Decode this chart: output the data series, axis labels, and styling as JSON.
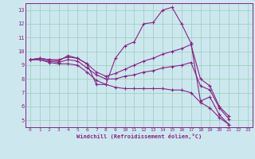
{
  "xlabel": "Windchill (Refroidissement éolien,°C)",
  "bg_color": "#cce8ee",
  "line_color": "#882288",
  "grid_color": "#99ccbb",
  "xlim": [
    -0.5,
    23.5
  ],
  "ylim": [
    4.5,
    13.5
  ],
  "yticks": [
    5,
    6,
    7,
    8,
    9,
    10,
    11,
    12,
    13
  ],
  "xticks": [
    0,
    1,
    2,
    3,
    4,
    5,
    6,
    7,
    8,
    9,
    10,
    11,
    12,
    13,
    14,
    15,
    16,
    17,
    18,
    19,
    20,
    21,
    22,
    23
  ],
  "series": [
    [
      9.4,
      9.5,
      9.4,
      9.3,
      9.7,
      9.5,
      9.1,
      7.6,
      7.6,
      9.5,
      10.4,
      10.7,
      12.0,
      12.1,
      13.0,
      13.2,
      12.0,
      10.6,
      6.4,
      6.7,
      5.4,
      4.7
    ],
    [
      9.4,
      9.5,
      9.4,
      9.4,
      9.6,
      9.5,
      9.1,
      8.5,
      8.2,
      8.4,
      8.7,
      9.0,
      9.3,
      9.5,
      9.8,
      10.0,
      10.2,
      10.5,
      8.0,
      7.5,
      6.0,
      5.3
    ],
    [
      9.4,
      9.4,
      9.3,
      9.2,
      9.4,
      9.3,
      8.8,
      8.3,
      8.0,
      8.0,
      8.2,
      8.3,
      8.5,
      8.6,
      8.8,
      8.9,
      9.0,
      9.2,
      7.5,
      7.2,
      5.9,
      5.1
    ],
    [
      9.4,
      9.4,
      9.2,
      9.1,
      9.1,
      9.0,
      8.5,
      7.9,
      7.6,
      7.4,
      7.3,
      7.3,
      7.3,
      7.3,
      7.3,
      7.2,
      7.2,
      7.0,
      6.3,
      5.9,
      5.2,
      4.7
    ]
  ]
}
